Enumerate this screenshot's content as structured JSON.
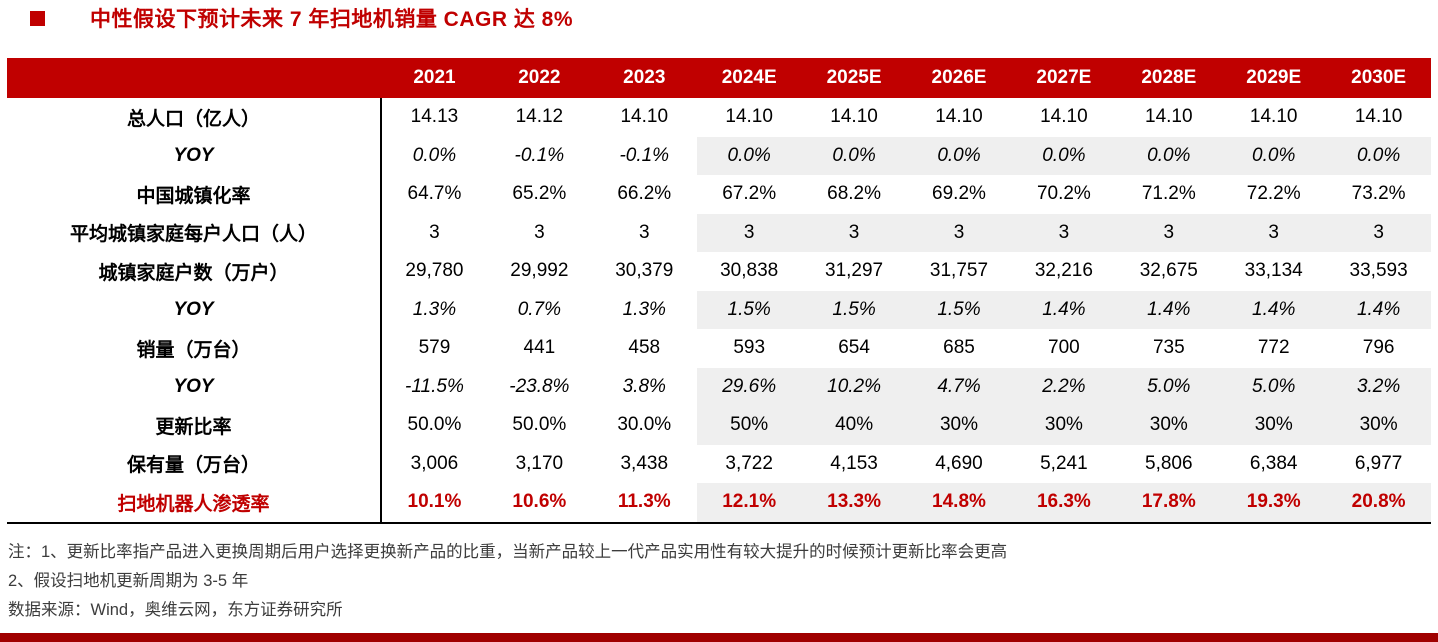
{
  "title": "中性假设下预计未来 7 年扫地机销量 CAGR 达 8%",
  "colors": {
    "accent_red": "#C00000",
    "row_shade": "#EFEFEF",
    "footer_bar": "#A00000"
  },
  "chart_data": {
    "type": "table",
    "title": "中性假设下预计未来 7 年扫地机销量 CAGR 达 8%",
    "categories": [
      "2021",
      "2022",
      "2023",
      "2024E",
      "2025E",
      "2026E",
      "2027E",
      "2028E",
      "2029E",
      "2030E"
    ],
    "forecast_start_index": 3,
    "rows": [
      {
        "label": "总人口（亿人）",
        "style": "normal",
        "shaded": false,
        "values": [
          "14.13",
          "14.12",
          "14.10",
          "14.10",
          "14.10",
          "14.10",
          "14.10",
          "14.10",
          "14.10",
          "14.10"
        ]
      },
      {
        "label": "YOY",
        "style": "italic",
        "shaded": true,
        "values": [
          "0.0%",
          "-0.1%",
          "-0.1%",
          "0.0%",
          "0.0%",
          "0.0%",
          "0.0%",
          "0.0%",
          "0.0%",
          "0.0%"
        ]
      },
      {
        "label": "中国城镇化率",
        "style": "normal",
        "shaded": false,
        "values": [
          "64.7%",
          "65.2%",
          "66.2%",
          "67.2%",
          "68.2%",
          "69.2%",
          "70.2%",
          "71.2%",
          "72.2%",
          "73.2%"
        ]
      },
      {
        "label": "平均城镇家庭每户人口（人）",
        "style": "normal",
        "shaded": true,
        "values": [
          "3",
          "3",
          "3",
          "3",
          "3",
          "3",
          "3",
          "3",
          "3",
          "3"
        ]
      },
      {
        "label": "城镇家庭户数（万户）",
        "style": "normal",
        "shaded": false,
        "values": [
          "29,780",
          "29,992",
          "30,379",
          "30,838",
          "31,297",
          "31,757",
          "32,216",
          "32,675",
          "33,134",
          "33,593"
        ]
      },
      {
        "label": "YOY",
        "style": "italic",
        "shaded": true,
        "values": [
          "1.3%",
          "0.7%",
          "1.3%",
          "1.5%",
          "1.5%",
          "1.5%",
          "1.4%",
          "1.4%",
          "1.4%",
          "1.4%"
        ]
      },
      {
        "label": "销量（万台）",
        "style": "normal",
        "shaded": false,
        "values": [
          "579",
          "441",
          "458",
          "593",
          "654",
          "685",
          "700",
          "735",
          "772",
          "796"
        ]
      },
      {
        "label": "YOY",
        "style": "italic",
        "shaded": true,
        "values": [
          "-11.5%",
          "-23.8%",
          "3.8%",
          "29.6%",
          "10.2%",
          "4.7%",
          "2.2%",
          "5.0%",
          "5.0%",
          "3.2%"
        ]
      },
      {
        "label": "更新比率",
        "style": "normal",
        "shaded": true,
        "values": [
          "50.0%",
          "50.0%",
          "30.0%",
          "50%",
          "40%",
          "30%",
          "30%",
          "30%",
          "30%",
          "30%"
        ]
      },
      {
        "label": "保有量（万台）",
        "style": "normal",
        "shaded": false,
        "values": [
          "3,006",
          "3,170",
          "3,438",
          "3,722",
          "4,153",
          "4,690",
          "5,241",
          "5,806",
          "6,384",
          "6,977"
        ]
      },
      {
        "label": "扫地机器人渗透率",
        "style": "highlight",
        "shaded": true,
        "values": [
          "10.1%",
          "10.6%",
          "11.3%",
          "12.1%",
          "13.3%",
          "14.8%",
          "16.3%",
          "17.8%",
          "19.3%",
          "20.8%"
        ]
      }
    ]
  },
  "notes": [
    "注：1、更新比率指产品进入更换周期后用户选择更换新产品的比重，当新产品较上一代产品实用性有较大提升的时候预计更新比率会更高",
    "2、假设扫地机更新周期为 3-5 年",
    "数据来源：Wind，奥维云网，东方证券研究所"
  ]
}
